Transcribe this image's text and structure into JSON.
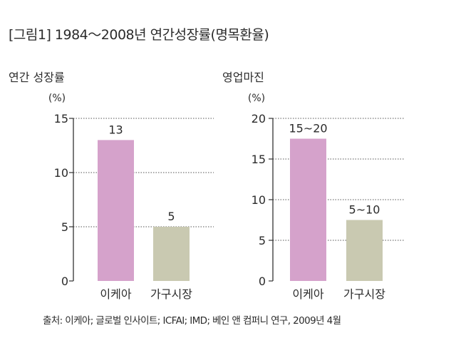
{
  "figure": {
    "title": "[그림1] 1984～2008년 연간성장률(명목환율)",
    "source": "출처: 이케아; 글로벌 인사이트; ICFAI; IMD; 베인 앤 컴퍼니 연구, 2009년 4월"
  },
  "chart_data": [
    {
      "type": "bar",
      "title": "연간 성장률",
      "unit_label": "(%)",
      "categories": [
        "이케아",
        "가구시장"
      ],
      "values": [
        13,
        5
      ],
      "data_labels": [
        "13",
        "5"
      ],
      "ylim": [
        0,
        15
      ],
      "yticks": [
        0,
        5,
        10,
        15
      ],
      "grid": "dotted",
      "bar_colors": [
        "#d5a2cb",
        "#c9c9b1"
      ]
    },
    {
      "type": "bar",
      "title": "영업마진",
      "unit_label": "(%)",
      "categories": [
        "이케아",
        "가구시장"
      ],
      "values": [
        17.5,
        7.5
      ],
      "data_labels": [
        "15~20",
        "5~10"
      ],
      "ylim": [
        0,
        20
      ],
      "yticks": [
        0,
        5,
        10,
        15,
        20
      ],
      "grid": "dotted",
      "bar_colors": [
        "#d5a2cb",
        "#c9c9b1"
      ]
    }
  ]
}
